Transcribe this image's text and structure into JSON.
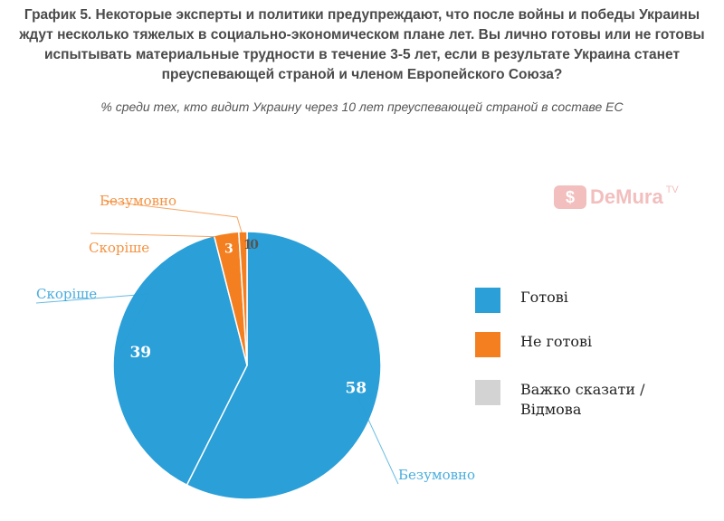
{
  "chart_data": {
    "type": "pie",
    "title": "График 5. Некоторые эксперты и политики предупреждают, что после войны и победы Украины ждут несколько тяжелых в социально-экономическом плане лет. Вы лично готовы или не готовы испытывать материальные трудности в течение 3-5 лет, если в результате Украина станет преуспевающей страной и членом Европейского Союза?",
    "subtitle": "% среди тех, кто видит Украину через 10 лет преуспевающей страной в составе ЕС",
    "slices": [
      {
        "label": "Безумовно",
        "group": "Готові",
        "value": 58,
        "color": "#2a9fd8"
      },
      {
        "label": "Скоріше",
        "group": "Готові",
        "value": 39,
        "color": "#2a9fd8"
      },
      {
        "label": "Скоріше",
        "group": "Не готові",
        "value": 3,
        "color": "#f47f20"
      },
      {
        "label": "Безумовно",
        "group": "Не готові",
        "value": 1,
        "color": "#f47f20"
      },
      {
        "label": "",
        "group": "Важко сказати / Відмова",
        "value": 0,
        "color": "#d3d3d3"
      }
    ],
    "legend": [
      {
        "label": "Готові",
        "color": "#2a9fd8"
      },
      {
        "label": "Не готові",
        "color": "#f47f20"
      },
      {
        "label": "Важко сказати / Відмова",
        "color": "#d3d3d3"
      }
    ],
    "legend_position": "right"
  },
  "watermark": {
    "badge": "$",
    "text": "DeMura",
    "suffix": "TV"
  }
}
